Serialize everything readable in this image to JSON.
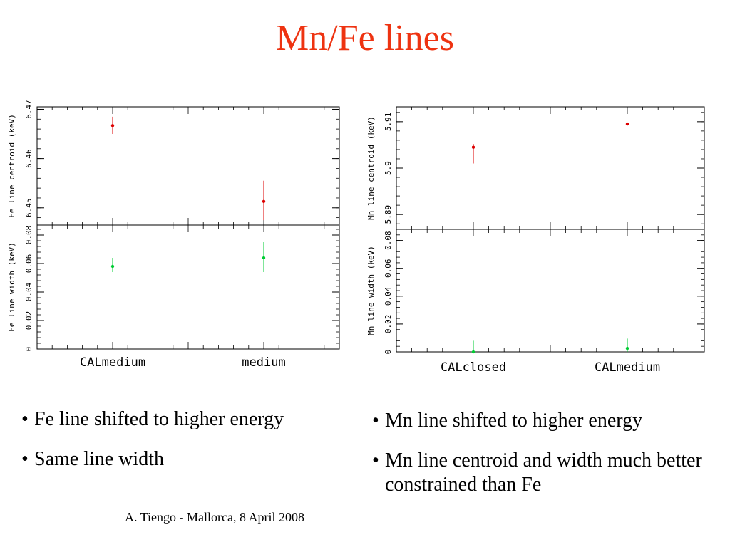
{
  "slide": {
    "title": "Mn/Fe lines",
    "footer": "A. Tiengo - Mallorca,  8 April 2008"
  },
  "bullets_left": [
    "Fe line shifted to higher energy",
    "Same line width"
  ],
  "bullets_right": [
    "Mn line shifted to higher energy",
    "Mn line centroid and width much better constrained than Fe"
  ],
  "chart_data": [
    {
      "type": "scatter",
      "categories": [
        "CALmedium",
        "medium"
      ],
      "panels": [
        {
          "ylabel": "Fe line centroid (keV)",
          "ylim": [
            6.4465,
            6.4705
          ],
          "yticks": [
            6.45,
            6.46,
            6.47
          ],
          "color": "#dd0000",
          "values": [
            6.4667,
            6.4513
          ],
          "err_low": [
            6.465,
            6.4475
          ],
          "err_high": [
            6.4685,
            6.4555
          ]
        },
        {
          "ylabel": "Fe line width (keV)",
          "ylim": [
            0,
            0.087
          ],
          "yticks": [
            0,
            0.02,
            0.04,
            0.06,
            0.08
          ],
          "color": "#00cc33",
          "values": [
            0.058,
            0.064
          ],
          "err_low": [
            0.054,
            0.054
          ],
          "err_high": [
            0.064,
            0.075
          ]
        }
      ]
    },
    {
      "type": "scatter",
      "categories": [
        "CALclosed",
        "CALmedium"
      ],
      "panels": [
        {
          "ylabel": "Mn line centroid (keV)",
          "ylim": [
            5.8868,
            5.9132
          ],
          "yticks": [
            5.89,
            5.9,
            5.91
          ],
          "color": "#dd0000",
          "values": [
            5.9045,
            5.9095
          ],
          "err_low": [
            5.901,
            5.9095
          ],
          "err_high": [
            5.9052,
            5.9095
          ]
        },
        {
          "ylabel": "Mn line width (keV)",
          "ylim": [
            0,
            0.088
          ],
          "yticks": [
            0,
            0.02,
            0.04,
            0.06,
            0.08
          ],
          "color": "#00cc33",
          "values": [
            0.0,
            0.0025
          ],
          "err_low": [
            0.0,
            0.0
          ],
          "err_high": [
            0.008,
            0.0095
          ]
        }
      ]
    }
  ]
}
